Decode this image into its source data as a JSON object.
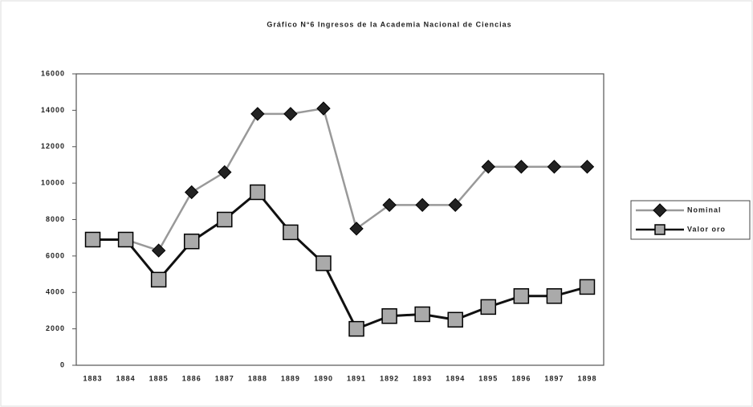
{
  "chart_data": {
    "type": "line",
    "title": "Gráfico N°6  Ingresos de la Academia Nacional de Ciencias",
    "categories": [
      "1883",
      "1884",
      "1885",
      "1886",
      "1887",
      "1888",
      "1889",
      "1890",
      "1891",
      "1892",
      "1893",
      "1894",
      "1895",
      "1896",
      "1897",
      "1898"
    ],
    "series": [
      {
        "name": "Nominal",
        "color": "#999999",
        "marker": "diamond",
        "marker_color": "#222222",
        "values": [
          6900,
          6900,
          6300,
          9500,
          10600,
          13800,
          13800,
          14100,
          7500,
          8800,
          8800,
          8800,
          10900,
          10900,
          10900,
          10900
        ]
      },
      {
        "name": "Valor oro",
        "color": "#111111",
        "marker": "square",
        "marker_color": "#aaaaaa",
        "values": [
          6900,
          6900,
          4700,
          6800,
          8000,
          9500,
          7300,
          5600,
          2000,
          2700,
          2800,
          2500,
          3200,
          3800,
          3800,
          4300
        ]
      }
    ],
    "ylim": [
      0,
      16000
    ],
    "yticks": [
      0,
      2000,
      4000,
      6000,
      8000,
      10000,
      12000,
      14000,
      16000
    ],
    "grid": false,
    "legend": "right"
  }
}
